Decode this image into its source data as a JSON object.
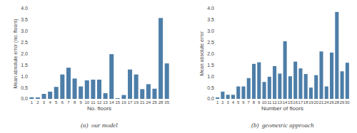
{
  "chart_data": [
    {
      "type": "bar",
      "title": "(a)  our model",
      "categories": [
        "1",
        "2",
        "3",
        "4",
        "5",
        "6",
        "7",
        "8",
        "9",
        "10",
        "11",
        "12",
        "13",
        "14",
        "15",
        "16",
        "17",
        "19",
        "21",
        "24",
        "25",
        "28",
        "35"
      ],
      "values": [
        0.07,
        0.05,
        0.22,
        0.32,
        0.53,
        1.08,
        1.38,
        0.9,
        0.55,
        0.82,
        0.85,
        0.85,
        0.25,
        1.98,
        0.02,
        0.17,
        1.3,
        1.08,
        0.43,
        0.65,
        0.45,
        3.58,
        1.57
      ],
      "xlabel": "No. floors",
      "ylabel": "Mean absolute error (no. floors)",
      "color": "#4d7ea8",
      "ylim": [
        0,
        4.0
      ],
      "yticks": [
        {
          "value": 0,
          "label": "0.0"
        },
        0.5,
        {
          "value": 1,
          "label": "1.0"
        },
        1.5,
        {
          "value": 2,
          "label": "2.0"
        },
        2.5,
        {
          "value": 3,
          "label": "3.0"
        },
        3.5,
        {
          "value": 4,
          "label": "4.0"
        }
      ],
      "grid": true
    },
    {
      "type": "bar",
      "title": "(b)  geometric approach",
      "categories": [
        "1",
        "2",
        "3",
        "4",
        "5",
        "6",
        "7",
        "8",
        "9",
        "10",
        "11",
        "12",
        "13",
        "14",
        "15",
        "16",
        "17",
        "18",
        "19",
        "20",
        "21",
        "24",
        "26",
        "28",
        "29",
        "30"
      ],
      "values": [
        0.05,
        0.32,
        0.18,
        0.18,
        0.55,
        0.55,
        0.92,
        1.55,
        1.62,
        0.75,
        0.98,
        1.45,
        1.12,
        2.55,
        1.0,
        1.65,
        1.35,
        1.1,
        0.5,
        1.05,
        2.1,
        0.55,
        2.05,
        3.85,
        1.22,
        1.6
      ],
      "xlabel": "Number of floors",
      "ylabel": "Mean absolute error",
      "color": "#4d7ea8",
      "ylim": [
        0,
        4.0
      ],
      "yticks": [
        {
          "value": 0,
          "label": "0.0"
        },
        0.5,
        {
          "value": 1,
          "label": "1.0"
        },
        1.5,
        {
          "value": 2,
          "label": "2.0"
        },
        2.5,
        {
          "value": 3,
          "label": "3.0"
        },
        3.5,
        {
          "value": 4,
          "label": "4.0"
        }
      ],
      "grid": true
    }
  ]
}
